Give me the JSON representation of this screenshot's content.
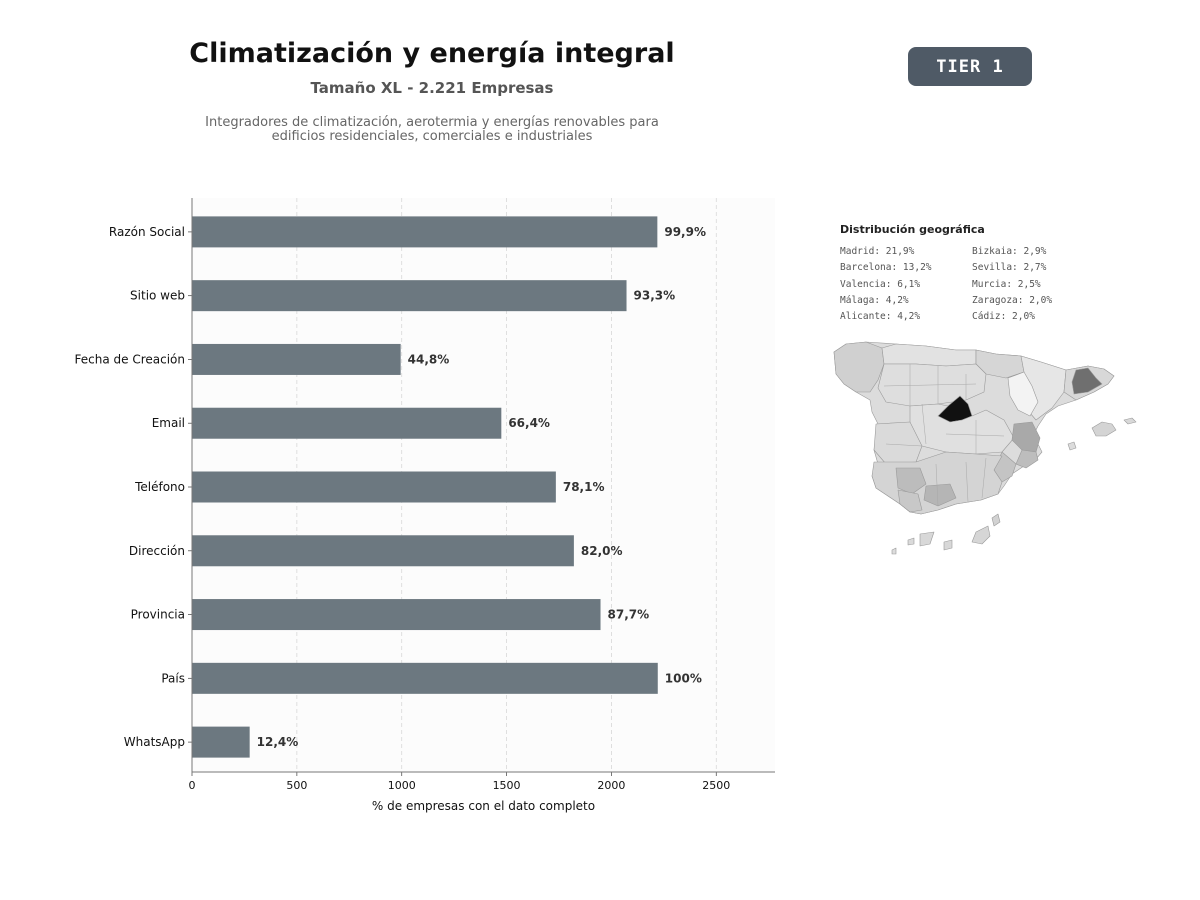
{
  "header": {
    "title": "Climatización y energía integral",
    "subtitle": "Tamaño XL - 2.221 Empresas",
    "description_line1": "Integradores de climatización, aerotermia y energías renovables para",
    "description_line2": "edificios residenciales, comerciales e industriales"
  },
  "badge": {
    "label": "TIER 1",
    "color": "#4f5a66"
  },
  "chart_data": {
    "type": "bar",
    "orientation": "horizontal",
    "title": "",
    "xlabel": "% de empresas con el dato completo",
    "ylabel": "",
    "xlim": [
      0,
      2780
    ],
    "xticks": [
      0,
      500,
      1000,
      1500,
      2000,
      2500
    ],
    "grid": "vertical dashed",
    "bar_color": "#6c7880",
    "categories": [
      "Razón Social",
      "Sitio web",
      "Fecha de Creación",
      "Email",
      "Teléfono",
      "Dirección",
      "Provincia",
      "País",
      "WhatsApp"
    ],
    "values": [
      2219,
      2072,
      995,
      1475,
      1735,
      1821,
      1948,
      2221,
      275
    ],
    "labels": [
      "99,9%",
      "93,3%",
      "44,8%",
      "66,4%",
      "78,1%",
      "82,0%",
      "87,7%",
      "100%",
      "12,4%"
    ]
  },
  "geo": {
    "title": "Distribución geográfica",
    "items": [
      "Madrid: 21,9%",
      "Bizkaia: 2,9%",
      "Barcelona: 13,2%",
      "Sevilla: 2,7%",
      "Valencia: 6,1%",
      "Murcia: 2,5%",
      "Málaga: 4,2%",
      "Zaragoza: 2,0%",
      "Alicante: 4,2%",
      "Cádiz: 2,0%"
    ]
  }
}
